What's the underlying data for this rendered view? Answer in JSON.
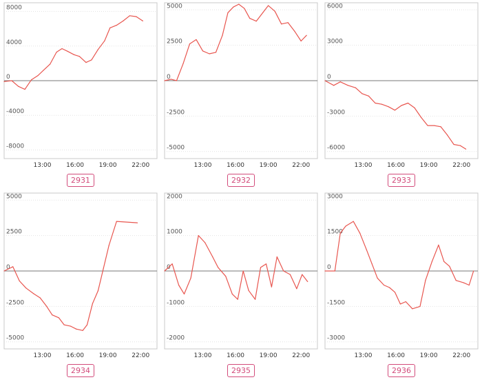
{
  "colors": {
    "line": "#e8554e",
    "zero": "#777777",
    "grid": "#e2e2e2",
    "frame": "#c8c8c8",
    "text": "#555555",
    "tag": "#d24a7a"
  },
  "chart_data": [
    {
      "type": "line",
      "id": "2931",
      "ylim": [
        -9000,
        9000
      ],
      "yticks": [
        8000,
        4000,
        0,
        -4000,
        -8000
      ],
      "ytick_labels": [
        "8000",
        "4000",
        "0",
        "-4000",
        "-8000"
      ],
      "xlim": [
        9.5,
        23.5
      ],
      "xticks": [
        13,
        16,
        19,
        22
      ],
      "xtick_labels": [
        "13:00",
        "16:00",
        "19:00",
        "22:00"
      ],
      "x": [
        9.5,
        10.2,
        10.8,
        11.4,
        12,
        12.6,
        13.1,
        13.7,
        14.3,
        14.8,
        15.3,
        15.9,
        16.4,
        17,
        17.5,
        18.1,
        18.7,
        19.2,
        19.8,
        20.4,
        21,
        21.6,
        22.2
      ],
      "y": [
        -100,
        0,
        -650,
        -1000,
        100,
        600,
        1200,
        1900,
        3300,
        3700,
        3400,
        3000,
        2800,
        2100,
        2400,
        3600,
        4600,
        6100,
        6400,
        6900,
        7500,
        7400,
        6900
      ]
    },
    {
      "type": "line",
      "id": "2932",
      "ylim": [
        -5500,
        5500
      ],
      "yticks": [
        5000,
        2500,
        0,
        -2500,
        -5000
      ],
      "ytick_labels": [
        "5000",
        "2500",
        "0",
        "-2500",
        "-5000"
      ],
      "xlim": [
        9.5,
        23.5
      ],
      "xticks": [
        13,
        16,
        19,
        22
      ],
      "xtick_labels": [
        "13:00",
        "16:00",
        "19:00",
        "22:00"
      ],
      "x": [
        9.5,
        10.1,
        10.6,
        11.2,
        11.8,
        12.4,
        13,
        13.6,
        14.2,
        14.8,
        15.3,
        15.8,
        16.3,
        16.8,
        17.3,
        17.9,
        18.5,
        19,
        19.6,
        20.2,
        20.8,
        21.4,
        22,
        22.5
      ],
      "y": [
        0,
        100,
        0,
        1200,
        2600,
        2900,
        2100,
        1900,
        2000,
        3200,
        4800,
        5200,
        5400,
        5100,
        4400,
        4200,
        4800,
        5300,
        4900,
        4000,
        4100,
        3500,
        2800,
        3200
      ]
    },
    {
      "type": "line",
      "id": "2933",
      "ylim": [
        -6600,
        6600
      ],
      "yticks": [
        6000,
        3000,
        0,
        -3000,
        -6000
      ],
      "ytick_labels": [
        "6000",
        "3000",
        "0",
        "-3000",
        "-6000"
      ],
      "xlim": [
        9.5,
        23.5
      ],
      "xticks": [
        13,
        16,
        19,
        22
      ],
      "xtick_labels": [
        "13:00",
        "16:00",
        "19:00",
        "22:00"
      ],
      "x": [
        9.5,
        10.3,
        10.9,
        11.6,
        12.3,
        12.9,
        13.5,
        14.1,
        14.7,
        15.3,
        15.9,
        16.5,
        17.1,
        17.7,
        18.3,
        18.9,
        19.5,
        20.1,
        20.7,
        21.3,
        21.9,
        22.4
      ],
      "y": [
        0,
        -400,
        -100,
        -400,
        -600,
        -1100,
        -1300,
        -1900,
        -2000,
        -2200,
        -2500,
        -2100,
        -1900,
        -2300,
        -3100,
        -3800,
        -3800,
        -3900,
        -4600,
        -5400,
        -5500,
        -5800
      ]
    },
    {
      "type": "line",
      "id": "2934",
      "ylim": [
        -5500,
        5500
      ],
      "yticks": [
        5000,
        2500,
        0,
        -2500,
        -5000
      ],
      "ytick_labels": [
        "5000",
        "2500",
        "0",
        "-2500",
        "-5000"
      ],
      "xlim": [
        9.5,
        23.5
      ],
      "xticks": [
        13,
        16,
        19,
        22
      ],
      "xtick_labels": [
        "13:00",
        "16:00",
        "19:00",
        "22:00"
      ],
      "x": [
        9.5,
        10.3,
        10.9,
        11.5,
        12.2,
        12.8,
        13.4,
        13.9,
        14.5,
        15,
        15.6,
        16.1,
        16.7,
        17.1,
        17.6,
        18.1,
        18.6,
        19.1,
        19.8,
        21.7
      ],
      "y": [
        0,
        300,
        -700,
        -1200,
        -1600,
        -1900,
        -2500,
        -3100,
        -3300,
        -3800,
        -3900,
        -4100,
        -4200,
        -3800,
        -2300,
        -1400,
        200,
        1800,
        3500,
        3400
      ]
    },
    {
      "type": "line",
      "id": "2935",
      "ylim": [
        -2200,
        2200
      ],
      "yticks": [
        2000,
        1000,
        0,
        -1000,
        -2000
      ],
      "ytick_labels": [
        "2000",
        "1000",
        "0",
        "-1000",
        "-2000"
      ],
      "xlim": [
        9.5,
        23.5
      ],
      "xticks": [
        13,
        16,
        19,
        22
      ],
      "xtick_labels": [
        "13:00",
        "16:00",
        "19:00",
        "22:00"
      ],
      "x": [
        9.5,
        10.2,
        10.8,
        11.3,
        11.9,
        12.6,
        13.2,
        13.9,
        14.4,
        15.1,
        15.7,
        16.2,
        16.7,
        17.2,
        17.8,
        18.3,
        18.8,
        19.3,
        19.8,
        20.4,
        21,
        21.6,
        22.1,
        22.6
      ],
      "y": [
        0,
        200,
        -400,
        -650,
        -200,
        1000,
        800,
        400,
        100,
        -150,
        -650,
        -800,
        0,
        -550,
        -800,
        100,
        200,
        -450,
        400,
        0,
        -100,
        -500,
        -100,
        -300
      ]
    },
    {
      "type": "line",
      "id": "2936",
      "ylim": [
        -3300,
        3300
      ],
      "yticks": [
        3000,
        1500,
        0,
        -1500,
        -3000
      ],
      "ytick_labels": [
        "3000",
        "1500",
        "0",
        "-1500",
        "-3000"
      ],
      "xlim": [
        9.5,
        23.5
      ],
      "xticks": [
        13,
        16,
        19,
        22
      ],
      "xtick_labels": [
        "13:00",
        "16:00",
        "19:00",
        "22:00"
      ],
      "x": [
        9.5,
        10.4,
        10.9,
        11.4,
        12.1,
        12.7,
        13.3,
        13.8,
        14.3,
        14.9,
        15.4,
        15.9,
        16.4,
        16.9,
        17.5,
        18.2,
        18.7,
        19.3,
        19.9,
        20.4,
        20.9,
        21.5,
        22.2,
        22.7,
        23.1
      ],
      "y": [
        0,
        0,
        1600,
        1900,
        2100,
        1600,
        900,
        300,
        -300,
        -600,
        -700,
        -900,
        -1400,
        -1300,
        -1600,
        -1500,
        -400,
        400,
        1100,
        400,
        200,
        -400,
        -500,
        -600,
        0
      ]
    }
  ]
}
